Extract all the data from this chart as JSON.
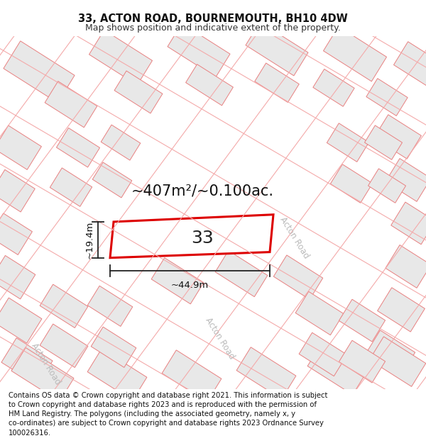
{
  "title_line1": "33, ACTON ROAD, BOURNEMOUTH, BH10 4DW",
  "title_line2": "Map shows position and indicative extent of the property.",
  "footer_text": "Contains OS data © Crown copyright and database right 2021. This information is subject to Crown copyright and database rights 2023 and is reproduced with the permission of HM Land Registry. The polygons (including the associated geometry, namely x, y co-ordinates) are subject to Crown copyright and database rights 2023 Ordnance Survey 100026316.",
  "area_label": "~407m²/~0.100ac.",
  "width_label": "~44.9m",
  "height_label": "~19.4m",
  "plot_number": "33",
  "bg_color": "#ffffff",
  "map_bg": "#ffffff",
  "building_fill": "#e8e8e8",
  "building_stroke": "#e88080",
  "road_color": "#f4aaaa",
  "highlight_fill": "#ffffff",
  "highlight_stroke": "#dd0000",
  "title_fontsize": 10.5,
  "subtitle_fontsize": 9,
  "footer_fontsize": 7.2,
  "area_label_fontsize": 15,
  "road_label_color": "#bbbbbb",
  "dim_line_color": "#222222"
}
